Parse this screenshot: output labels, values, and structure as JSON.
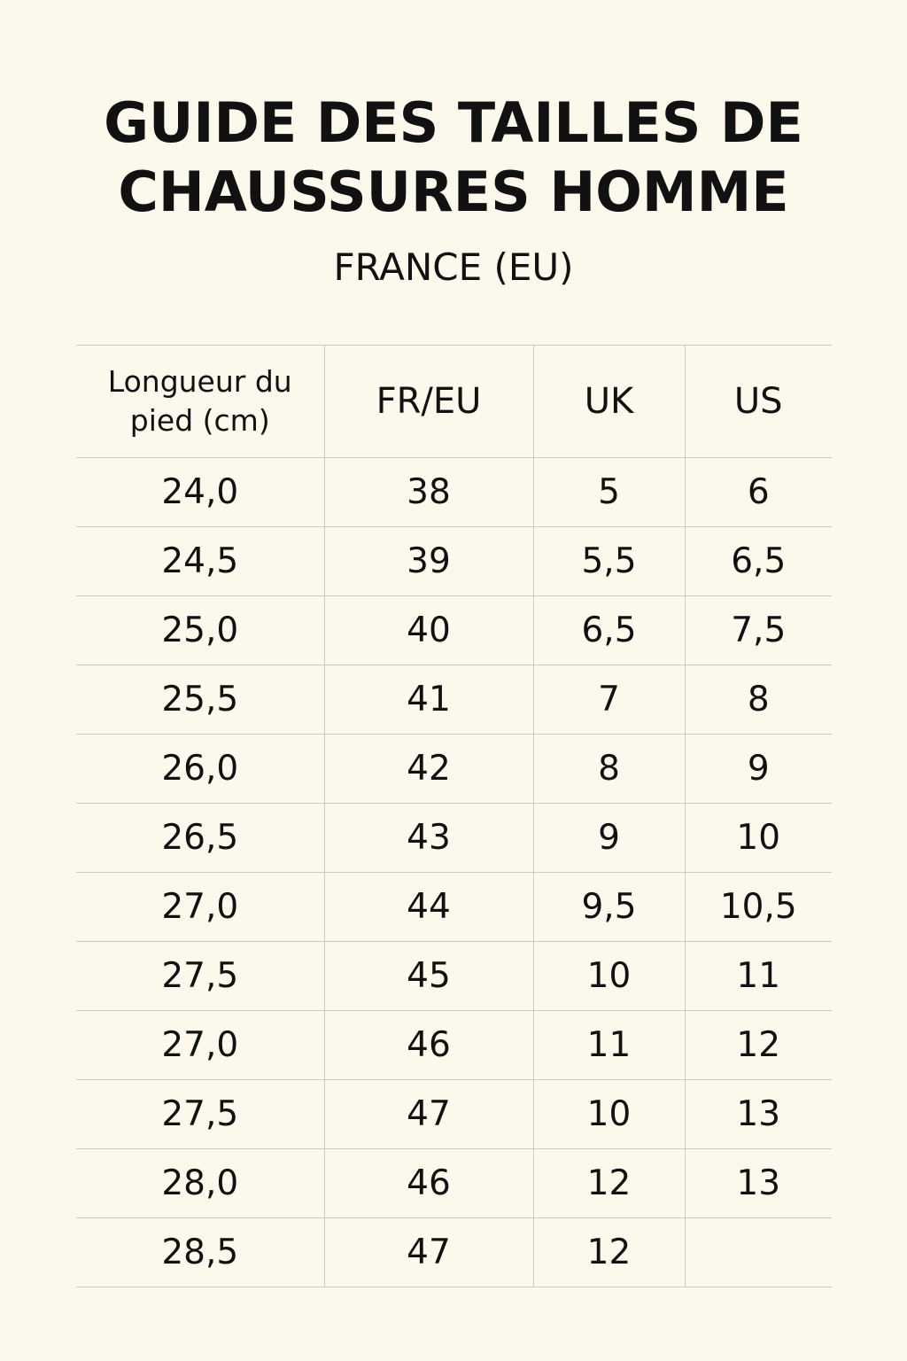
{
  "header": {
    "title_line1": "GUIDE DES TAILLES DE",
    "title_line2": "CHAUSSURES HOMME",
    "subtitle": "FRANCE (EU)"
  },
  "table": {
    "columns": [
      "Longueur du pied (cm)",
      "FR/EU",
      "UK",
      "US"
    ],
    "rows": [
      [
        "24,0",
        "38",
        "5",
        "6"
      ],
      [
        "24,5",
        "39",
        "5,5",
        "6,5"
      ],
      [
        "25,0",
        "40",
        "6,5",
        "7,5"
      ],
      [
        "25,5",
        "41",
        "7",
        "8"
      ],
      [
        "26,0",
        "42",
        "8",
        "9"
      ],
      [
        "26,5",
        "43",
        "9",
        "10"
      ],
      [
        "27,0",
        "44",
        "9,5",
        "10,5"
      ],
      [
        "27,5",
        "45",
        "10",
        "11"
      ],
      [
        "27,0",
        "46",
        "11",
        "12"
      ],
      [
        "27,5",
        "47",
        "10",
        "13"
      ],
      [
        "28,0",
        "46",
        "12",
        "13"
      ],
      [
        "28,5",
        "47",
        "12",
        ""
      ]
    ]
  },
  "colors": {
    "background": "#fcf8ec",
    "text": "#111111",
    "grid": "#c9c9c9"
  }
}
